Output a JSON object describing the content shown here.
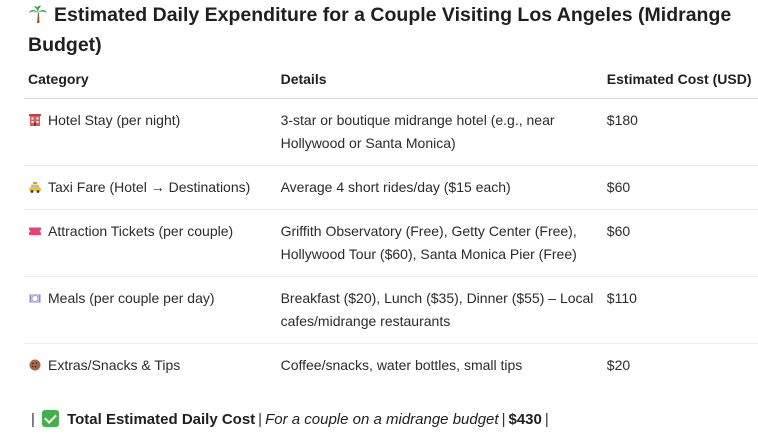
{
  "title": "Estimated Daily Expenditure for a Couple Visiting Los Angeles (Midrange Budget)",
  "title_icon": "palm-tree-icon",
  "table": {
    "headers": [
      "Category",
      "Details",
      "Estimated Cost (USD)"
    ],
    "rows": [
      {
        "icon": "hotel-icon",
        "category": "Hotel Stay (per night)",
        "details": "3-star or boutique midrange hotel (e.g., near Hollywood or Santa Monica)",
        "cost": "$180"
      },
      {
        "icon": "taxi-icon",
        "category": "Taxi Fare (Hotel → Destinations)",
        "details": "Average 4 short rides/day ($15 each)",
        "cost": "$60"
      },
      {
        "icon": "ticket-icon",
        "category": "Attraction Tickets (per couple)",
        "details": "Griffith Observatory (Free), Getty Center (Free), Hollywood Tour ($60), Santa Monica Pier (Free)",
        "cost": "$60"
      },
      {
        "icon": "meal-plate-icon",
        "category": "Meals (per couple per day)",
        "details": "Breakfast ($20), Lunch ($35), Dinner ($55) – Local cafes/midrange restaurants",
        "cost": "$110"
      },
      {
        "icon": "cookie-icon",
        "category": "Extras/Snacks & Tips",
        "details": "Coffee/snacks, water bottles, small tips",
        "cost": "$20"
      }
    ]
  },
  "total": {
    "pipe": "|",
    "icon": "check-mark-icon",
    "label": "Total Estimated Daily Cost",
    "note": "For a couple on a midrange budget",
    "amount": "$430"
  },
  "colors": {
    "check_green": "#43b04a",
    "ticket_pink": "#e8426e"
  }
}
